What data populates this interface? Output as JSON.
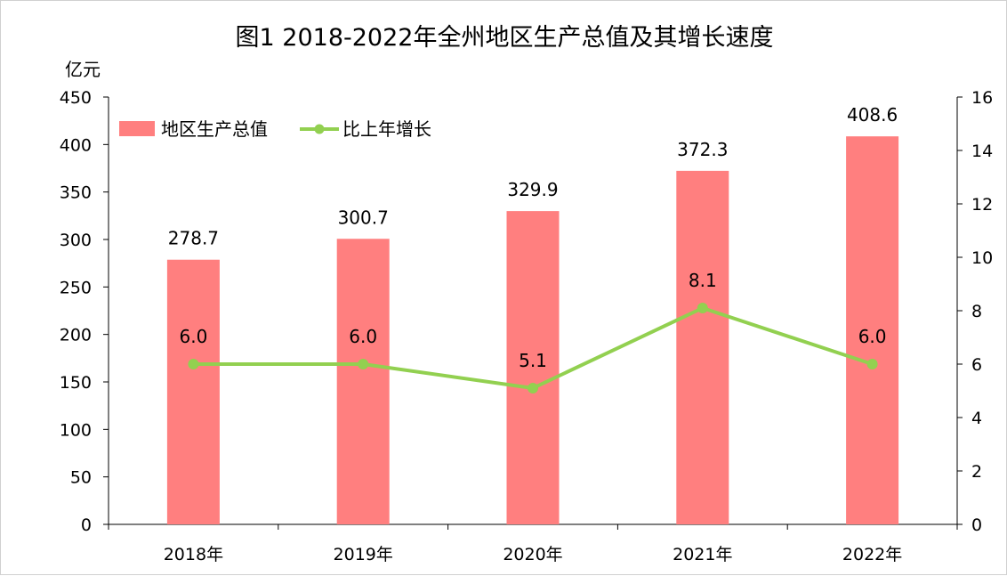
{
  "chart_data": {
    "type": "bar",
    "title": "图1  2018-2022年全州地区生产总值及其增长速度",
    "y_unit": "亿元",
    "categories": [
      "2018年",
      "2019年",
      "2020年",
      "2021年",
      "2022年"
    ],
    "series": [
      {
        "name": "地区生产总值",
        "type": "bar",
        "axis": "left",
        "color": "#ff7f7f",
        "values": [
          278.7,
          300.7,
          329.9,
          372.3,
          408.6
        ],
        "labels": [
          "278.7",
          "300.7",
          "329.9",
          "372.3",
          "408.6"
        ]
      },
      {
        "name": "比上年增长",
        "type": "line",
        "axis": "right",
        "color": "#92d050",
        "values": [
          6.0,
          6.0,
          5.1,
          8.1,
          6.0
        ],
        "labels": [
          "6.0",
          "6.0",
          "5.1",
          "8.1",
          "6.0"
        ]
      }
    ],
    "y_left": {
      "min": 0,
      "max": 450,
      "step": 50,
      "ticks": [
        "0",
        "50",
        "100",
        "150",
        "200",
        "250",
        "300",
        "350",
        "400",
        "450"
      ]
    },
    "y_right": {
      "min": 0,
      "max": 16,
      "step": 2,
      "ticks": [
        "0",
        "2",
        "4",
        "6",
        "8",
        "10",
        "12",
        "14",
        "16"
      ]
    },
    "grid": false,
    "legend_position": "top-left"
  }
}
